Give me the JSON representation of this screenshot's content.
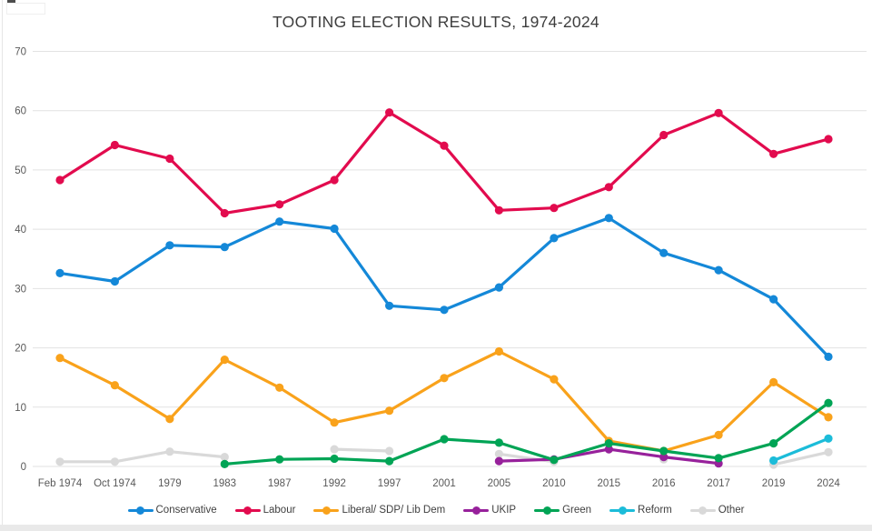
{
  "chart_data": {
    "type": "line",
    "title": "TOOTING ELECTION RESULTS, 1974-2024",
    "categories": [
      "Feb 1974",
      "Oct 1974",
      "1979",
      "1983",
      "1987",
      "1992",
      "1997",
      "2001",
      "2005",
      "2010",
      "2015",
      "2016",
      "2017",
      "2019",
      "2024"
    ],
    "series": [
      {
        "name": "Conservative",
        "color": "#1488d8",
        "values": [
          32.6,
          31.2,
          37.3,
          37.0,
          41.3,
          40.1,
          27.1,
          26.4,
          30.2,
          38.5,
          41.9,
          36.0,
          33.1,
          28.2,
          18.5
        ]
      },
      {
        "name": "Labour",
        "color": "#e20b4e",
        "values": [
          48.3,
          54.2,
          51.9,
          42.7,
          44.2,
          48.3,
          59.7,
          54.1,
          43.2,
          43.6,
          47.1,
          55.9,
          59.6,
          52.7,
          55.2
        ]
      },
      {
        "name": "Liberal/ SDP/ Lib Dem",
        "color": "#f9a21b",
        "values": [
          18.3,
          13.7,
          8.0,
          18.0,
          13.3,
          7.4,
          9.4,
          14.9,
          19.4,
          14.7,
          4.3,
          2.6,
          5.3,
          14.2,
          8.3
        ]
      },
      {
        "name": "UKIP",
        "color": "#97219b",
        "values": [
          null,
          null,
          null,
          null,
          null,
          null,
          null,
          null,
          0.9,
          1.2,
          2.9,
          1.6,
          0.5,
          null,
          null
        ]
      },
      {
        "name": "Green",
        "color": "#00a455",
        "values": [
          null,
          null,
          null,
          0.4,
          1.2,
          1.3,
          0.9,
          4.6,
          4.0,
          1.1,
          3.9,
          2.6,
          1.4,
          3.9,
          10.7
        ]
      },
      {
        "name": "Reform",
        "color": "#1cbcd9",
        "values": [
          null,
          null,
          null,
          null,
          null,
          null,
          null,
          null,
          null,
          null,
          null,
          null,
          null,
          1.0,
          4.7
        ]
      },
      {
        "name": "Other",
        "color": "#d9d9d9",
        "values": [
          0.8,
          0.8,
          2.5,
          1.6,
          null,
          2.9,
          2.6,
          null,
          2.1,
          0.8,
          null,
          1.2,
          null,
          0.3,
          2.4
        ]
      }
    ],
    "ylim": [
      0,
      70
    ],
    "ytick_step": 10,
    "grid": "horizontal",
    "legend_position": "bottom"
  }
}
